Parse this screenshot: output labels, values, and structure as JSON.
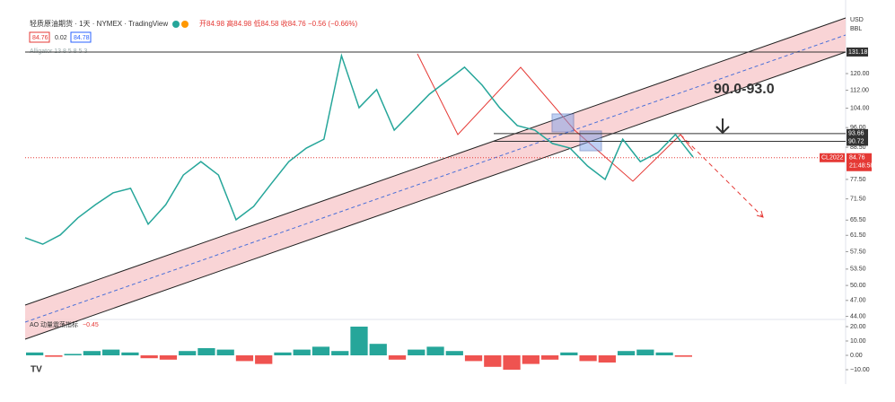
{
  "header": {
    "symbol": "轻质原油期货 · 1天 · NYMEX · TradingView",
    "ohlc": "开84.98 高84.98 低84.58 收84.76 −0.56 (−0.66%)",
    "bid": "84.76",
    "spread": "0.02",
    "ask": "84.78",
    "indicator": "Alligator 13 8 5 8 5 3"
  },
  "axis": {
    "currency": "USD",
    "unit": "BBL",
    "ticks": [
      {
        "value": 120,
        "label": "120.00"
      },
      {
        "value": 112,
        "label": "112.00"
      },
      {
        "value": 104,
        "label": "104.00"
      },
      {
        "value": 96,
        "label": "96.00"
      },
      {
        "value": 88.5,
        "label": "88.50"
      },
      {
        "value": 77.5,
        "label": "77.50"
      },
      {
        "value": 71.5,
        "label": "71.50"
      },
      {
        "value": 65.5,
        "label": "65.50"
      },
      {
        "value": 61.5,
        "label": "61.50"
      },
      {
        "value": 57.5,
        "label": "57.50"
      },
      {
        "value": 53.5,
        "label": "53.50"
      },
      {
        "value": 50,
        "label": "50.00"
      },
      {
        "value": 47,
        "label": "47.00"
      },
      {
        "value": 44,
        "label": "44.00"
      }
    ],
    "levels": [
      {
        "value": 131.18,
        "label": "131.18"
      },
      {
        "value": 93.66,
        "label": "93.66"
      },
      {
        "value": 90.72,
        "label": "90.72"
      }
    ],
    "current": {
      "value": 84.76,
      "label": "84.76",
      "symbol": "CL2022",
      "countdown": "21:48:58"
    }
  },
  "annotation": "90.0-93.0",
  "price": [
    60.9,
    59.3,
    61.6,
    66.1,
    69.8,
    73.3,
    74.7,
    64.4,
    69.8,
    78.9,
    83.4,
    78.9,
    65.6,
    69.3,
    76.1,
    83.4,
    88.2,
    91.5,
    129.2,
    104.2,
    112.3,
    95.0,
    102.3,
    110.2,
    116.5,
    123.2,
    114.4,
    104.2,
    96.8,
    95.0,
    89.9,
    88.2,
    81.9,
    77.5,
    91.5,
    83.4,
    86.6,
    93.3,
    85.0
  ],
  "oscillator": {
    "label": "AO 动量震荡指标",
    "value": "−0.45",
    "ticks": [
      {
        "value": 20,
        "label": "20.00"
      },
      {
        "value": 10,
        "label": "10.00"
      },
      {
        "value": 0,
        "label": "0.00"
      },
      {
        "value": -10,
        "label": "−10.00"
      }
    ],
    "values": [
      2,
      -1,
      1,
      3,
      4,
      2,
      -2,
      -3,
      3,
      5,
      4,
      -4,
      -6,
      2,
      4,
      6,
      3,
      20,
      8,
      -3,
      4,
      6,
      3,
      -4,
      -8,
      -10,
      -6,
      -3,
      2,
      -4,
      -5,
      3,
      4,
      2,
      -1
    ]
  }
}
